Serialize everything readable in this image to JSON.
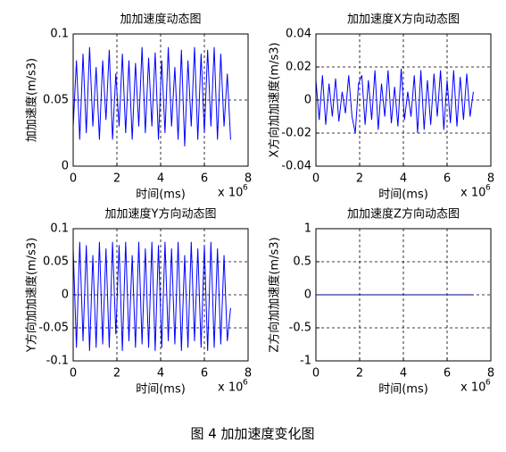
{
  "caption": "图 4  加加速度变化图",
  "chart_data": [
    {
      "type": "line",
      "title": "加加速度动态图",
      "x_label": "时间(ms)",
      "y_label": "加加速度(m/s3)",
      "x_scale_label": "x 10",
      "x_scale_exp": "6",
      "xlim": [
        0,
        8
      ],
      "xticks": [
        0,
        2,
        4,
        6,
        8
      ],
      "ylim": [
        0,
        0.1
      ],
      "yticks": [
        0,
        0.05,
        0.1
      ],
      "grid": true,
      "x": [
        0,
        0.15,
        0.3,
        0.45,
        0.6,
        0.75,
        0.9,
        1.05,
        1.2,
        1.35,
        1.5,
        1.65,
        1.8,
        1.95,
        2.1,
        2.25,
        2.4,
        2.55,
        2.7,
        2.85,
        3,
        3.15,
        3.3,
        3.45,
        3.6,
        3.75,
        3.9,
        4.05,
        4.2,
        4.35,
        4.5,
        4.65,
        4.8,
        4.95,
        5.1,
        5.25,
        5.4,
        5.55,
        5.7,
        5.85,
        6,
        6.15,
        6.3,
        6.45,
        6.6,
        6.75,
        6.9,
        7.05,
        7.2
      ],
      "series": [
        {
          "color": "#0000ff",
          "values": [
            0.03,
            0.08,
            0.02,
            0.085,
            0.025,
            0.09,
            0.03,
            0.075,
            0.02,
            0.08,
            0.035,
            0.088,
            0.02,
            0.07,
            0.03,
            0.085,
            0.025,
            0.08,
            0.02,
            0.078,
            0.03,
            0.09,
            0.025,
            0.082,
            0.03,
            0.086,
            0.02,
            0.08,
            0.025,
            0.09,
            0.03,
            0.075,
            0.02,
            0.088,
            0.015,
            0.08,
            0.03,
            0.09,
            0.02,
            0.085,
            0.025,
            0.088,
            0.03,
            0.09,
            0.02,
            0.085,
            0.03,
            0.07,
            0.02
          ]
        }
      ]
    },
    {
      "type": "line",
      "title": "加加速度X方向动态图",
      "x_label": "时间(ms)",
      "y_label": "X方向加加速度(m/s3)",
      "x_scale_label": "x 10",
      "x_scale_exp": "6",
      "xlim": [
        0,
        8
      ],
      "xticks": [
        0,
        2,
        4,
        6,
        8
      ],
      "ylim": [
        -0.04,
        0.04
      ],
      "yticks": [
        -0.04,
        -0.02,
        0,
        0.02,
        0.04
      ],
      "grid": true,
      "x": [
        0,
        0.15,
        0.3,
        0.45,
        0.6,
        0.75,
        0.9,
        1.05,
        1.2,
        1.35,
        1.5,
        1.65,
        1.8,
        1.95,
        2.1,
        2.25,
        2.4,
        2.55,
        2.7,
        2.85,
        3,
        3.15,
        3.3,
        3.45,
        3.6,
        3.75,
        3.9,
        4.05,
        4.2,
        4.35,
        4.5,
        4.65,
        4.8,
        4.95,
        5.1,
        5.25,
        5.4,
        5.55,
        5.7,
        5.85,
        6,
        6.15,
        6.3,
        6.45,
        6.6,
        6.75,
        6.9,
        7.05,
        7.2
      ],
      "series": [
        {
          "color": "#0000ff",
          "values": [
            0.012,
            -0.012,
            0.015,
            -0.015,
            0.01,
            -0.01,
            0.013,
            -0.013,
            0.005,
            -0.008,
            0.015,
            -0.01,
            -0.02,
            0.01,
            0.015,
            -0.015,
            0.012,
            -0.012,
            0.018,
            -0.018,
            0.01,
            -0.01,
            0.018,
            -0.014,
            0.008,
            -0.016,
            0.019,
            -0.012,
            0.005,
            -0.01,
            0.015,
            -0.02,
            0.018,
            -0.018,
            0.012,
            -0.015,
            0.016,
            -0.01,
            0.018,
            -0.018,
            0.012,
            -0.014,
            0.018,
            -0.016,
            0.014,
            -0.012,
            0.016,
            -0.01,
            0.005
          ]
        }
      ]
    },
    {
      "type": "line",
      "title": "加加速度Y方向动态图",
      "x_label": "时间(ms)",
      "y_label": "Y方向加加速度(m/s3)",
      "x_scale_label": "x 10",
      "x_scale_exp": "6",
      "xlim": [
        0,
        8
      ],
      "xticks": [
        0,
        2,
        4,
        6,
        8
      ],
      "ylim": [
        -0.1,
        0.1
      ],
      "yticks": [
        -0.1,
        -0.05,
        0,
        0.05,
        0.1
      ],
      "grid": true,
      "x": [
        0,
        0.15,
        0.3,
        0.45,
        0.6,
        0.75,
        0.9,
        1.05,
        1.2,
        1.35,
        1.5,
        1.65,
        1.8,
        1.95,
        2.1,
        2.25,
        2.4,
        2.55,
        2.7,
        2.85,
        3,
        3.15,
        3.3,
        3.45,
        3.6,
        3.75,
        3.9,
        4.05,
        4.2,
        4.35,
        4.5,
        4.65,
        4.8,
        4.95,
        5.1,
        5.25,
        5.4,
        5.55,
        5.7,
        5.85,
        6,
        6.15,
        6.3,
        6.45,
        6.6,
        6.75,
        6.9,
        7.05,
        7.2
      ],
      "series": [
        {
          "color": "#0000ff",
          "values": [
            0.07,
            -0.08,
            0.08,
            -0.07,
            0.075,
            -0.085,
            0.06,
            -0.08,
            0.08,
            -0.075,
            0.07,
            -0.08,
            0.08,
            -0.06,
            0.075,
            -0.085,
            0.08,
            -0.07,
            0.06,
            -0.08,
            0.08,
            -0.075,
            0.07,
            -0.08,
            0.08,
            -0.085,
            0.075,
            -0.08,
            0.08,
            -0.07,
            0.07,
            -0.075,
            0.08,
            -0.085,
            0.06,
            -0.08,
            0.08,
            -0.07,
            0.07,
            -0.08,
            0.075,
            -0.085,
            0.08,
            -0.08,
            0.07,
            -0.075,
            0.06,
            -0.07,
            -0.02
          ]
        }
      ]
    },
    {
      "type": "line",
      "title": "加加速度Z方向动态图",
      "x_label": "时间(ms)",
      "y_label": "Z方向加加速度(m/s3)",
      "x_scale_label": "x 10",
      "x_scale_exp": "6",
      "xlim": [
        0,
        8
      ],
      "xticks": [
        0,
        2,
        4,
        6,
        8
      ],
      "ylim": [
        -1,
        1
      ],
      "yticks": [
        -1,
        -0.5,
        0,
        0.5,
        1
      ],
      "grid": true,
      "x": [
        0,
        7.2
      ],
      "series": [
        {
          "color": "#000080",
          "values": [
            0,
            0
          ]
        }
      ]
    }
  ]
}
